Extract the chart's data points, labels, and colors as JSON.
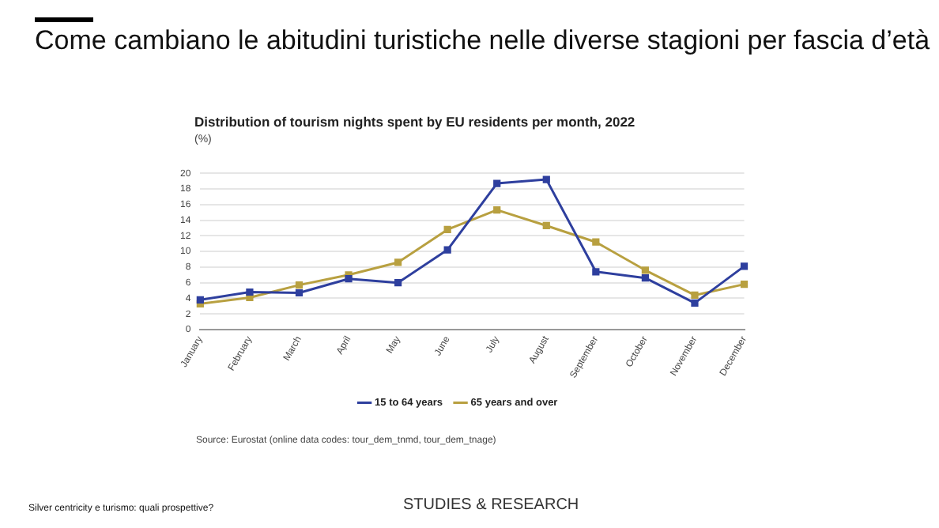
{
  "chart_data": {
    "type": "line",
    "title": "Come cambiano le abitudini turistiche nelle diverse stagioni per fascia d’età",
    "subtitle": "Distribution of tourism nights spent by EU residents per month, 2022",
    "ylabel": "(%)",
    "categories": [
      "January",
      "February",
      "March",
      "April",
      "May",
      "June",
      "July",
      "August",
      "September",
      "October",
      "November",
      "December"
    ],
    "series": [
      {
        "name": "15 to 64 years",
        "color": "#2e3f9e",
        "values": [
          3.8,
          4.8,
          4.7,
          6.5,
          6.0,
          10.2,
          18.7,
          19.2,
          7.4,
          6.6,
          3.4,
          8.1
        ]
      },
      {
        "name": "65 years and over",
        "color": "#b8a040",
        "values": [
          3.3,
          4.1,
          5.7,
          7.0,
          8.6,
          12.8,
          15.3,
          13.3,
          11.2,
          7.6,
          4.4,
          5.8
        ]
      }
    ],
    "ylim": [
      0,
      20
    ],
    "yticks": [
      0,
      2,
      4,
      6,
      8,
      10,
      12,
      14,
      16,
      18,
      20
    ],
    "grid": "y",
    "legend": "bottom",
    "marker": "square",
    "line_style": "solid",
    "annotations": [
      "Source: Eurostat (online data codes: tour_dem_tnmd, tour_dem_tnage)",
      "Silver centricity e turismo: quali prospettive?",
      "STUDIES & RESEARCH"
    ]
  }
}
